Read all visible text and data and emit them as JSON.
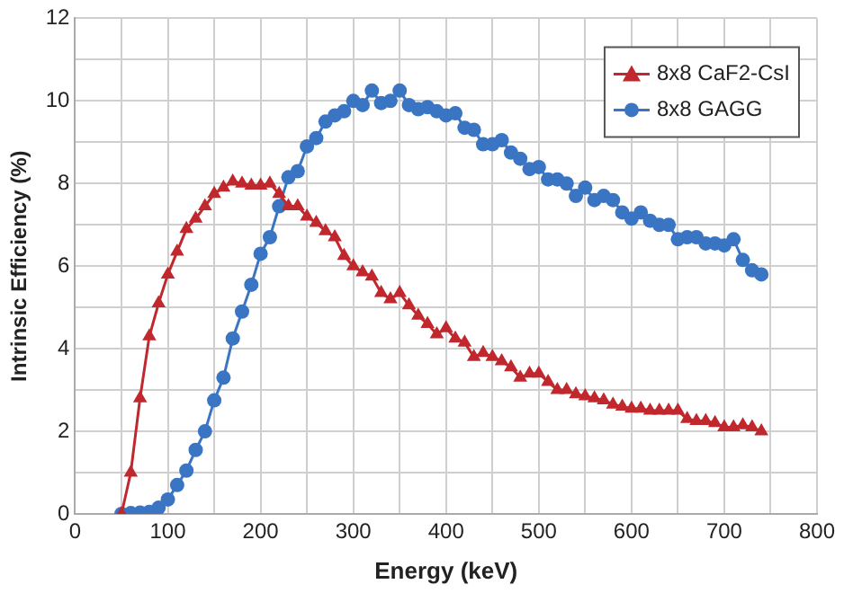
{
  "chart_data": {
    "type": "line",
    "xlabel": "Energy (keV)",
    "ylabel": "Intrinsic Efficiency (%)",
    "x": [
      50,
      60,
      70,
      80,
      90,
      100,
      110,
      120,
      130,
      140,
      150,
      160,
      170,
      180,
      190,
      200,
      210,
      220,
      230,
      240,
      250,
      260,
      270,
      280,
      290,
      300,
      310,
      320,
      330,
      340,
      350,
      360,
      370,
      380,
      390,
      400,
      410,
      420,
      430,
      440,
      450,
      460,
      470,
      480,
      490,
      500,
      510,
      520,
      530,
      540,
      550,
      560,
      570,
      580,
      590,
      600,
      610,
      620,
      630,
      640,
      650,
      660,
      670,
      680,
      690,
      700,
      710,
      720,
      730,
      740
    ],
    "series": [
      {
        "name": "8x8 CaF2-CsI",
        "color": "#c0282d",
        "marker": "triangle",
        "values": [
          0,
          1.0,
          2.8,
          4.3,
          5.1,
          5.8,
          6.35,
          6.9,
          7.15,
          7.45,
          7.75,
          7.9,
          8.05,
          8.0,
          7.95,
          7.95,
          8.0,
          7.75,
          7.45,
          7.45,
          7.2,
          7.05,
          6.85,
          6.7,
          6.25,
          6.0,
          5.85,
          5.75,
          5.35,
          5.2,
          5.35,
          5.05,
          4.8,
          4.6,
          4.35,
          4.5,
          4.25,
          4.15,
          3.8,
          3.9,
          3.8,
          3.7,
          3.55,
          3.3,
          3.4,
          3.4,
          3.2,
          3.0,
          3.0,
          2.9,
          2.85,
          2.8,
          2.75,
          2.65,
          2.6,
          2.55,
          2.55,
          2.5,
          2.5,
          2.5,
          2.5,
          2.3,
          2.25,
          2.25,
          2.2,
          2.1,
          2.1,
          2.15,
          2.1,
          2.0
        ]
      },
      {
        "name": "8x8 GAGG",
        "color": "#3a75c4",
        "marker": "circle",
        "values": [
          0,
          0.02,
          0.03,
          0.05,
          0.15,
          0.35,
          0.7,
          1.05,
          1.55,
          2.0,
          2.75,
          3.3,
          4.25,
          4.9,
          5.55,
          6.3,
          6.7,
          7.45,
          8.15,
          8.3,
          8.9,
          9.1,
          9.5,
          9.65,
          9.75,
          10.0,
          9.9,
          10.25,
          9.95,
          10.0,
          10.25,
          9.9,
          9.8,
          9.85,
          9.75,
          9.65,
          9.7,
          9.35,
          9.3,
          8.95,
          8.95,
          9.05,
          8.75,
          8.6,
          8.35,
          8.4,
          8.1,
          8.1,
          8.0,
          7.7,
          7.9,
          7.6,
          7.7,
          7.6,
          7.3,
          7.15,
          7.3,
          7.1,
          7.0,
          7.0,
          6.65,
          6.7,
          6.7,
          6.55,
          6.55,
          6.5,
          6.65,
          6.15,
          5.9,
          5.8
        ]
      }
    ],
    "xlim": [
      0,
      800
    ],
    "xticks": [
      0,
      {
        "value": 50,
        "label": null
      },
      100,
      {
        "value": 150,
        "label": null
      },
      200,
      {
        "value": 250,
        "label": null
      },
      300,
      {
        "value": 350,
        "label": null
      },
      400,
      {
        "value": 450,
        "label": null
      },
      500,
      {
        "value": 550,
        "label": null
      },
      600,
      {
        "value": 650,
        "label": null
      },
      700,
      {
        "value": 750,
        "label": null
      },
      800
    ],
    "ylim": [
      0,
      12
    ],
    "yticks": [
      0,
      {
        "value": 1,
        "label": null
      },
      2,
      {
        "value": 3,
        "label": null
      },
      4,
      {
        "value": 5,
        "label": null
      },
      6,
      {
        "value": 7,
        "label": null
      },
      8,
      {
        "value": 9,
        "label": null
      },
      10,
      {
        "value": 11,
        "label": null
      },
      12
    ],
    "grid": true,
    "legend": "top right",
    "line_style": "solid"
  }
}
